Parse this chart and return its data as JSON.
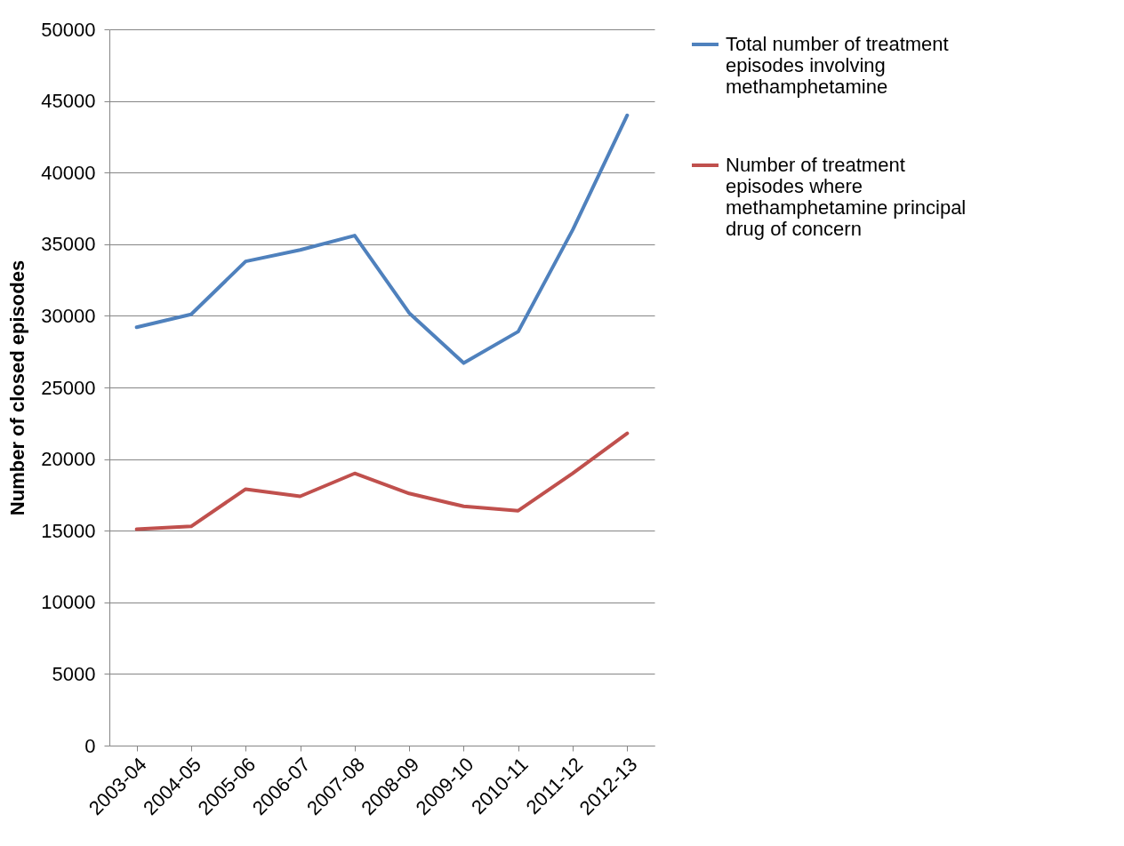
{
  "chart_data": {
    "type": "line",
    "ylabel": "Number of closed episodes",
    "categories": [
      "2003-04",
      "2004-05",
      "2005-06",
      "2006-07",
      "2007-08",
      "2008-09",
      "2009-10",
      "2010-11",
      "2011-12",
      "2012-13"
    ],
    "series": [
      {
        "name": "Total number of treatment episodes involving methamphetamine",
        "color": "#4f81bd",
        "values": [
          29200,
          30100,
          33800,
          34600,
          35600,
          30200,
          26700,
          28900,
          36000,
          44000
        ]
      },
      {
        "name": "Number of treatment episodes where methamphetamine principal drug of concern",
        "color": "#c0504d",
        "values": [
          15100,
          15300,
          17900,
          17400,
          19000,
          17600,
          16700,
          16400,
          19000,
          21800
        ]
      }
    ],
    "ylim": [
      0,
      50000
    ],
    "yticks": [
      0,
      5000,
      10000,
      15000,
      20000,
      25000,
      30000,
      35000,
      40000,
      45000,
      50000
    ],
    "grid": "y",
    "legend": "right",
    "marker": "none",
    "line_style": "solid"
  }
}
